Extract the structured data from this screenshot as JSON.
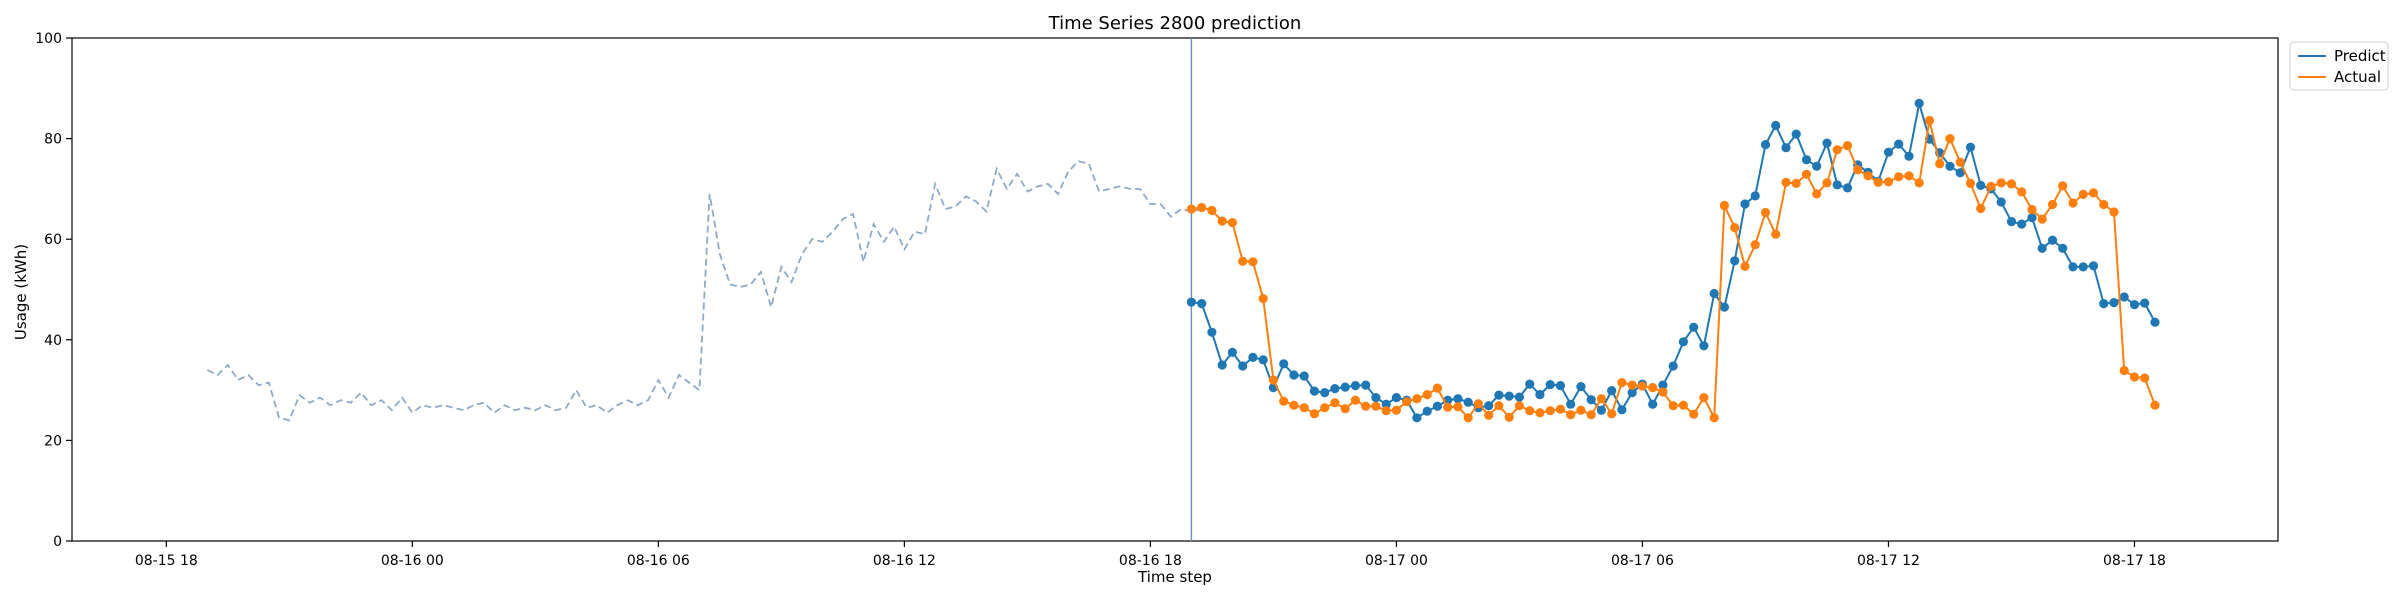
{
  "chart_data": {
    "type": "line",
    "title": "Time Series 2800 prediction",
    "xlabel": "Time step",
    "ylabel": "Usage (kWh)",
    "ylim": [
      0,
      100
    ],
    "xlim_hours": [
      -8.3,
      45.5
    ],
    "x_unit": "hours since 08-16 00:00",
    "x_ticks": [
      {
        "value": -6,
        "label": "08-15 18"
      },
      {
        "value": 0,
        "label": "08-16 00"
      },
      {
        "value": 6,
        "label": "08-16 06"
      },
      {
        "value": 12,
        "label": "08-16 12"
      },
      {
        "value": 18,
        "label": "08-16 18"
      },
      {
        "value": 24,
        "label": "08-17 00"
      },
      {
        "value": 30,
        "label": "08-17 06"
      },
      {
        "value": 36,
        "label": "08-17 12"
      },
      {
        "value": 42,
        "label": "08-17 18"
      }
    ],
    "y_ticks": [
      0,
      20,
      40,
      60,
      80,
      100
    ],
    "grid": false,
    "legend_position": "top-right, outside plot",
    "forecast_start": 19.0,
    "step_hours": 0.25,
    "history": {
      "start": -5.0,
      "color": "#8fa9c9",
      "style": "dashed",
      "values": [
        34,
        33,
        35,
        32,
        33,
        31,
        31.5,
        24.5,
        24,
        29,
        27.5,
        28.5,
        27,
        28,
        27.5,
        29.5,
        27,
        28,
        26,
        28.5,
        25.5,
        27,
        26.5,
        27,
        26.5,
        26,
        27,
        27.5,
        25.5,
        27,
        26,
        26.5,
        26,
        27,
        26,
        26.5,
        30,
        26.5,
        27,
        25.5,
        27,
        28,
        27,
        28,
        32,
        28.5,
        33,
        31.5,
        30,
        69,
        57,
        51,
        50.5,
        51,
        53.5,
        46.5,
        54.5,
        51.5,
        57,
        60,
        59.5,
        61.5,
        64,
        65,
        55.5,
        63,
        59.5,
        62.5,
        58,
        61.5,
        61,
        71,
        66,
        66.5,
        68.5,
        67.5,
        65.5,
        74,
        70,
        73,
        69.5,
        70.5,
        71,
        69,
        73.5,
        75.5,
        75,
        69.5,
        70,
        70.5,
        70,
        70,
        67,
        67,
        64.5,
        66,
        65.5,
        66
      ]
    },
    "series": [
      {
        "name": "Predict",
        "start": 19.0,
        "color": "#1f77b4",
        "values": [
          47.5,
          47.2,
          41.5,
          35,
          37.5,
          34.8,
          36.5,
          36,
          30.5,
          35.2,
          33,
          32.8,
          29.8,
          29.5,
          30.3,
          30.6,
          30.9,
          31,
          28.5,
          27.2,
          28.5,
          28,
          24.5,
          25.8,
          26.8,
          28,
          28.3,
          27.6,
          26.5,
          26.9,
          29,
          28.8,
          28.6,
          31.2,
          29.1,
          31.1,
          30.9,
          27.2,
          30.7,
          28.1,
          26,
          29.9,
          26.1,
          29.5,
          31.2,
          27.2,
          31,
          34.8,
          39.6,
          42.5,
          38.8,
          49.2,
          46.5,
          55.7,
          67,
          68.6,
          78.8,
          82.6,
          78.2,
          80.9,
          75.8,
          74.5,
          79.1,
          70.8,
          70.2,
          74.8,
          73.3,
          71.5,
          77.3,
          78.9,
          76.5,
          87,
          79.9,
          77.2,
          74.5,
          73.2,
          78.3,
          70.7,
          70,
          67.4,
          63.5,
          63,
          64.3,
          58.2,
          59.8,
          58.2,
          54.5,
          54.5,
          54.7,
          47.2,
          47.4,
          48.5,
          47,
          47.3,
          43.5
        ]
      },
      {
        "name": "Actual",
        "start": 19.0,
        "color": "#ff7f0e",
        "values": [
          66,
          66.3,
          65.7,
          63.6,
          63.3,
          55.6,
          55.5,
          48.2,
          32,
          27.8,
          27,
          26.5,
          25.3,
          26.5,
          27.5,
          26.3,
          28,
          26.8,
          26.8,
          25.9,
          26,
          27.7,
          28.3,
          29.1,
          30.4,
          26.6,
          26.7,
          24.5,
          27.3,
          25,
          26.9,
          24.6,
          26.9,
          25.9,
          25.5,
          25.9,
          26.2,
          25.1,
          26,
          25.1,
          28.3,
          25.3,
          31.5,
          31,
          30.8,
          30.5,
          29.6,
          26.9,
          27,
          25.2,
          28.5,
          24.5,
          66.7,
          62.3,
          54.6,
          58.9,
          65.3,
          61,
          71.3,
          71.1,
          72.9,
          69,
          71.2,
          77.8,
          78.6,
          73.8,
          72.6,
          71.3,
          71.4,
          72.4,
          72.6,
          71.2,
          83.6,
          75,
          80,
          75.3,
          71.1,
          66.1,
          70.5,
          71.2,
          71,
          69.4,
          65.9,
          64,
          66.9,
          70.6,
          67.2,
          68.9,
          69.2,
          66.9,
          65.4,
          33.9,
          32.6,
          32.4,
          27
        ]
      }
    ]
  }
}
